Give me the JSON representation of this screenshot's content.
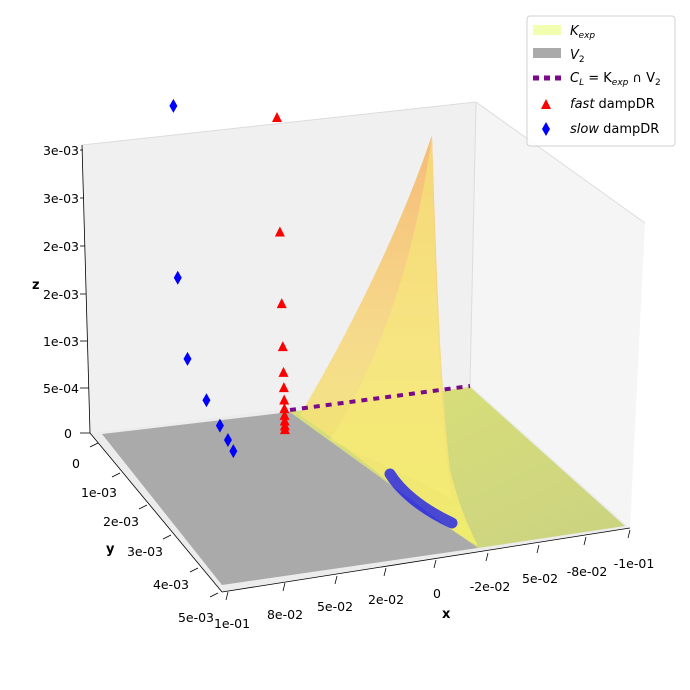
{
  "chart_data": {
    "type": "scatter",
    "projection": "3d",
    "axes": {
      "x": {
        "label": "x",
        "ticks": [
          "1e-01",
          "8e-02",
          "5e-02",
          "2e-02",
          "0",
          "-2e-02",
          "5e-02",
          "-8e-02",
          "-1e-01"
        ]
      },
      "y": {
        "label": "y",
        "ticks": [
          "0",
          "1e-03",
          "2e-03",
          "3e-03",
          "4e-03",
          "5e-03"
        ]
      },
      "z": {
        "label": "z",
        "ticks": [
          "0",
          "5e-04",
          "1e-03",
          "2e-03",
          "2e-03",
          "3e-03",
          "3e-03"
        ]
      }
    },
    "legend": {
      "position": "top-right",
      "entries": [
        {
          "label_main": "K",
          "label_sub": "exp",
          "marker": "patch",
          "color": "#f0ffb0"
        },
        {
          "label_main": "V",
          "label_sub": "2",
          "marker": "patch",
          "color": "#aaaaaa"
        },
        {
          "label_main": "C",
          "label_sub": "L",
          "label_rest": " = K",
          "label_sub2": "exp",
          "label_rest2": " ∩ V",
          "label_sub3": "2",
          "marker": "dashed",
          "color": "#7a0a8a"
        },
        {
          "label_main": "fast",
          "label_rest": " dampDR",
          "marker": "triangle",
          "color": "#ff0000"
        },
        {
          "label_main": "slow",
          "label_rest": " dampDR",
          "marker": "diamond",
          "color": "#0000ff"
        }
      ]
    },
    "series": [
      {
        "name": "fast dampDR",
        "marker": "triangle",
        "color": "#ff0000",
        "points": [
          {
            "x": 0.1,
            "y": 0,
            "z": 0.0033
          },
          {
            "x": 0.1,
            "y": 0,
            "z": 0.0021
          },
          {
            "x": 0.1,
            "y": 0,
            "z": 0.00135
          },
          {
            "x": 0.1,
            "y": 0,
            "z": 0.0009
          },
          {
            "x": 0.1,
            "y": 0,
            "z": 0.00063
          },
          {
            "x": 0.1,
            "y": 0,
            "z": 0.00047
          },
          {
            "x": 0.1,
            "y": 0,
            "z": 0.00034
          },
          {
            "x": 0.1,
            "y": 0,
            "z": 0.00025
          },
          {
            "x": 0.1,
            "y": 0,
            "z": 0.00018
          },
          {
            "x": 0.1,
            "y": 0,
            "z": 0.00012
          },
          {
            "x": 0.1,
            "y": 0,
            "z": 7e-05
          },
          {
            "x": 0.1,
            "y": 0,
            "z": 3e-05
          }
        ]
      },
      {
        "name": "slow dampDR",
        "marker": "diamond",
        "color": "#0000ff",
        "points": [
          {
            "x": -0.03,
            "y": 0,
            "z": 0.0031
          },
          {
            "x": -0.03,
            "y": 0,
            "z": 0.0013
          },
          {
            "x": -0.03,
            "y": 0.0003,
            "z": 0.00055
          },
          {
            "x": -0.03,
            "y": 0.001,
            "z": 0.00035
          },
          {
            "x": -0.03,
            "y": 0.0015,
            "z": 0.00025
          },
          {
            "x": -0.03,
            "y": 0.0018,
            "z": 0.0002
          },
          {
            "x": -0.03,
            "y": 0.002,
            "z": 0.00015
          }
        ]
      }
    ]
  }
}
